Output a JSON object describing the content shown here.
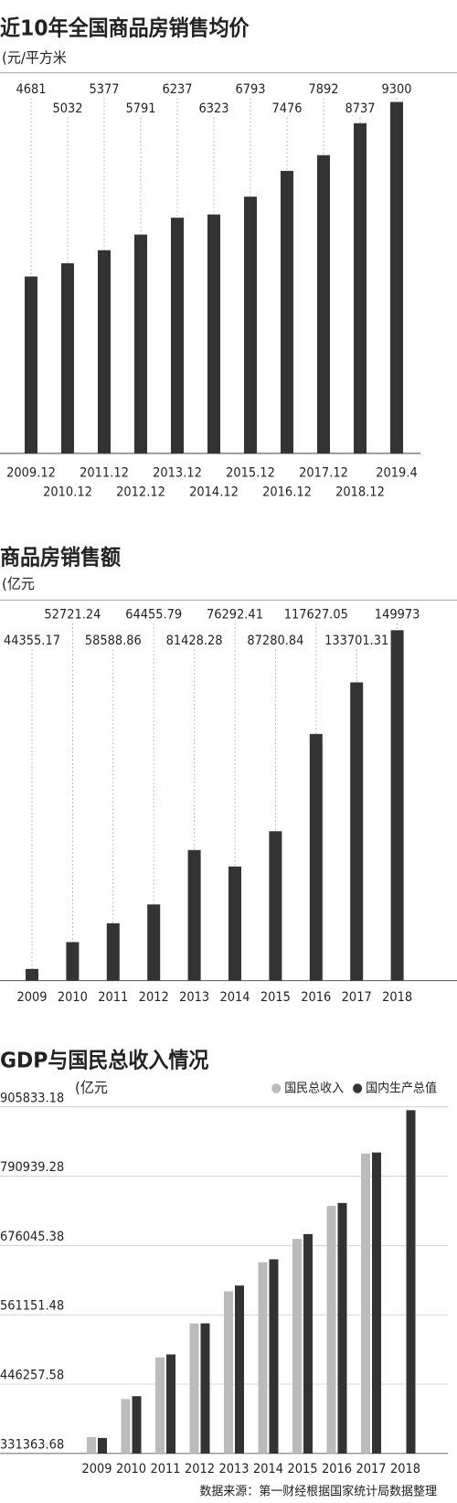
{
  "chart_data": [
    {
      "type": "bar",
      "title": "近10年全国商品房销售均价",
      "subtitle": "(元/平方米",
      "categories": [
        "2009.12",
        "2010.12",
        "2011.12",
        "2012.12",
        "2013.12",
        "2014.12",
        "2015.12",
        "2016.12",
        "2017.12",
        "2018.12",
        "2019.4"
      ],
      "values": [
        4681,
        5032,
        5377,
        5791,
        6237,
        6323,
        6793,
        7476,
        7892,
        8737,
        9300
      ],
      "color": "#333333",
      "ylim": [
        0,
        9300
      ]
    },
    {
      "type": "bar",
      "title": "商品房销售额",
      "subtitle": "(亿元",
      "categories": [
        "2009",
        "2010",
        "2011",
        "2012",
        "2013",
        "2014",
        "2015",
        "2016",
        "2017",
        "2018"
      ],
      "values": [
        44355.17,
        52721.24,
        58588.86,
        64455.79,
        81428.28,
        76292.41,
        87280.84,
        117627.05,
        133701.31,
        149973
      ],
      "color": "#333333",
      "ylim": [
        40700,
        150000
      ]
    },
    {
      "type": "grouped-bar",
      "title": "GDP与国民总收入情况",
      "subtitle": "(亿元",
      "categories": [
        "2009",
        "2010",
        "2011",
        "2012",
        "2013",
        "2014",
        "2015",
        "2016",
        "2017",
        "2018"
      ],
      "series": [
        {
          "name": "国民总收入",
          "color": "#bbbbbb",
          "values": [
            358700,
            421500,
            490700,
            547000,
            600100,
            648300,
            687000,
            741700,
            828500,
            null
          ]
        },
        {
          "name": "国内生产总值",
          "color": "#333333",
          "values": [
            357100,
            426300,
            495500,
            547000,
            609700,
            653200,
            695000,
            746500,
            830200,
            900300
          ]
        }
      ],
      "ylim": [
        331363.68,
        905833.18
      ],
      "yticks": [
        331363.68,
        446257.58,
        561151.48,
        676045.38,
        790939.28,
        905833.18
      ],
      "grid": true,
      "legend": "top-right",
      "source": "数据来源：第一财经根据国家统计局数据整理"
    }
  ]
}
